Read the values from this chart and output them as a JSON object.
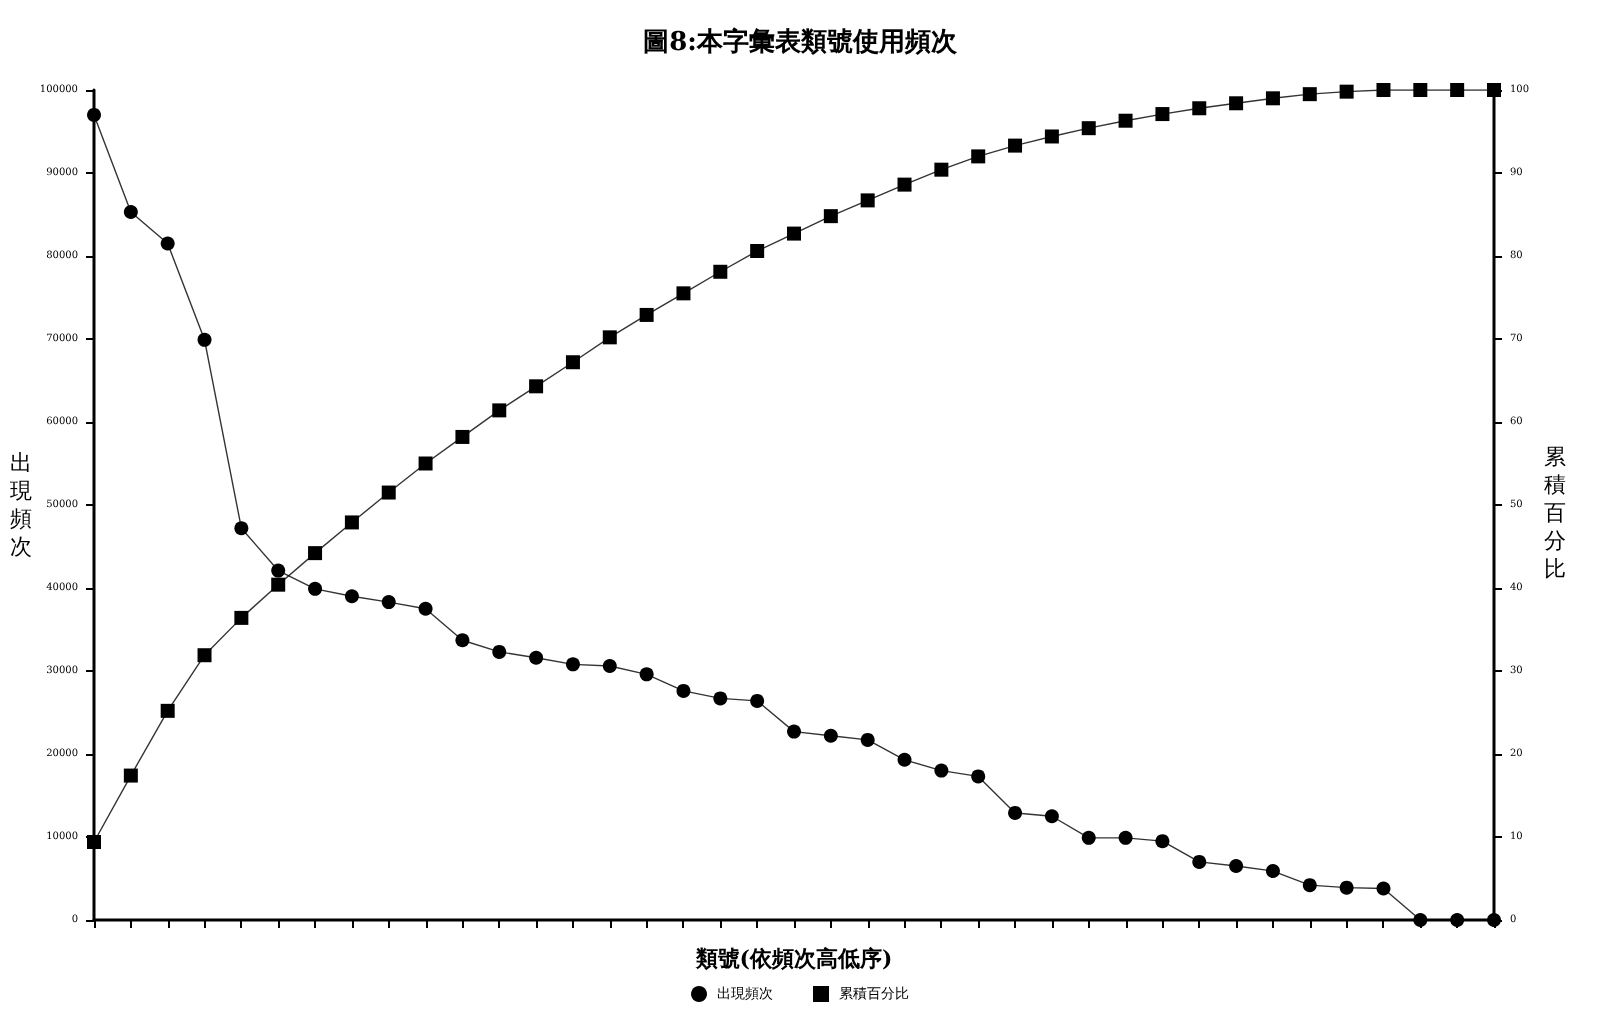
{
  "chart_data": {
    "type": "line",
    "title": "圖8:本字彙表類號使用頻次",
    "xlabel": "類號(依頻次高低序)",
    "ylabel": "出現頻次",
    "y2label": "累積百分比",
    "categories": [
      null,
      null,
      null,
      null,
      null,
      null,
      null,
      null,
      null,
      null,
      null,
      null,
      null,
      null,
      null,
      null,
      null,
      null,
      null,
      null,
      null,
      null,
      null,
      null,
      null,
      null,
      null,
      null,
      null,
      null,
      null,
      null,
      null,
      null,
      null,
      null,
      null,
      null,
      null
    ],
    "series": [
      {
        "name": "出現頻次",
        "color": "#000000",
        "marker": "circle",
        "values": [
          97000,
          85300,
          81500,
          69900,
          47200,
          42100,
          39900,
          39000,
          38300,
          37500,
          33700,
          32300,
          31600,
          30800,
          30600,
          29600,
          27600,
          26700,
          26400,
          22700,
          22200,
          21700,
          19300,
          18000,
          17300,
          12900,
          12500,
          9900,
          9900,
          9500,
          7000,
          6500,
          5900,
          4200,
          3900,
          3800,
          0,
          0,
          0
        ]
      },
      {
        "name": "累積百分比",
        "color": "#000000",
        "marker": "square",
        "axis": "y2",
        "values": [
          9.4,
          17.4,
          25.2,
          31.9,
          36.4,
          40.4,
          44.2,
          47.9,
          51.5,
          55.0,
          58.2,
          61.4,
          64.3,
          67.2,
          70.2,
          72.9,
          75.5,
          78.1,
          80.6,
          82.7,
          84.8,
          86.7,
          88.6,
          90.4,
          92.0,
          93.3,
          94.4,
          95.4,
          96.3,
          97.1,
          97.8,
          98.4,
          99.0,
          99.5,
          99.8,
          100,
          100,
          100,
          100
        ]
      }
    ],
    "ylim": [
      0,
      100000
    ],
    "yticks": [
      0,
      10000,
      20000,
      30000,
      40000,
      50000,
      60000,
      70000,
      80000,
      90000,
      100000
    ],
    "y2lim": [
      0,
      100
    ],
    "y2ticks": [
      0,
      10,
      20,
      30,
      40,
      50,
      60,
      70,
      80,
      90,
      100
    ],
    "grid": false,
    "legend": "bottom",
    "line_style": "solid"
  }
}
